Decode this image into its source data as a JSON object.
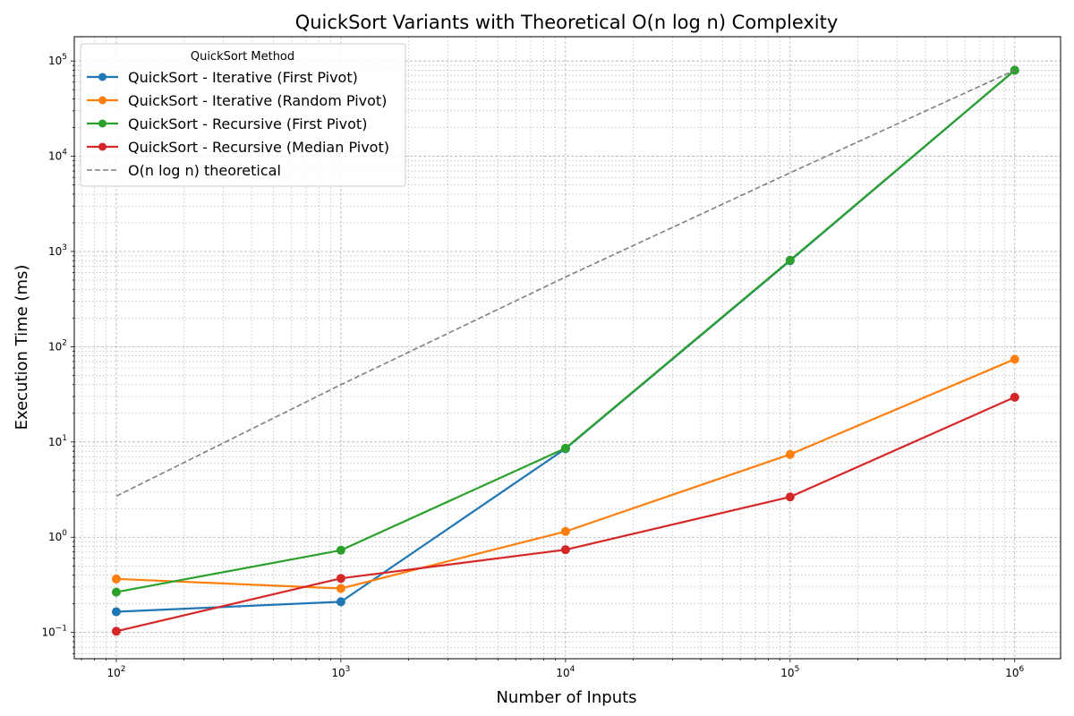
{
  "chart_data": {
    "type": "line",
    "title": "QuickSort Variants with Theoretical O(n log n) Complexity",
    "xlabel": "Number of Inputs",
    "ylabel": "Execution Time (ms)",
    "xscale": "log",
    "yscale": "log",
    "xlim": [
      65,
      1600000
    ],
    "ylim": [
      0.053,
      180000
    ],
    "xticks": [
      100,
      1000,
      10000,
      100000,
      1000000
    ],
    "xtick_labels": [
      {
        "base": "10",
        "exp": "2"
      },
      {
        "base": "10",
        "exp": "3"
      },
      {
        "base": "10",
        "exp": "4"
      },
      {
        "base": "10",
        "exp": "5"
      },
      {
        "base": "10",
        "exp": "6"
      }
    ],
    "yticks": [
      0.1,
      1,
      10,
      100,
      1000,
      10000,
      100000
    ],
    "ytick_labels": [
      {
        "base": "10",
        "exp": "−1"
      },
      {
        "base": "10",
        "exp": "0"
      },
      {
        "base": "10",
        "exp": "1"
      },
      {
        "base": "10",
        "exp": "2"
      },
      {
        "base": "10",
        "exp": "3"
      },
      {
        "base": "10",
        "exp": "4"
      },
      {
        "base": "10",
        "exp": "5"
      }
    ],
    "grid": true,
    "legend_title": "QuickSort Method",
    "legend_position": "top-left",
    "x": [
      100,
      1000,
      10000,
      100000,
      1000000
    ],
    "series": [
      {
        "name": "QuickSort - Iterative (First Pivot)",
        "color": "#1f77b4",
        "values": [
          0.165,
          0.21,
          8.5,
          800,
          80000
        ],
        "style": "solid",
        "marker": true
      },
      {
        "name": "QuickSort - Iterative (Random Pivot)",
        "color": "#ff7f0e",
        "values": [
          0.365,
          0.29,
          1.15,
          7.4,
          74
        ],
        "style": "solid",
        "marker": true
      },
      {
        "name": "QuickSort - Recursive (First Pivot)",
        "color": "#2ca02c",
        "values": [
          0.265,
          0.73,
          8.6,
          810,
          80000
        ],
        "style": "solid",
        "marker": true
      },
      {
        "name": "QuickSort - Recursive (Median Pivot)",
        "color": "#d62728",
        "values": [
          0.103,
          0.37,
          0.74,
          2.65,
          29.5
        ],
        "style": "solid",
        "marker": true
      },
      {
        "name": "O(n log n) theoretical",
        "color": "#808080",
        "values": [
          2.7,
          40,
          540,
          6700,
          80000
        ],
        "style": "dashed",
        "marker": false
      }
    ]
  }
}
